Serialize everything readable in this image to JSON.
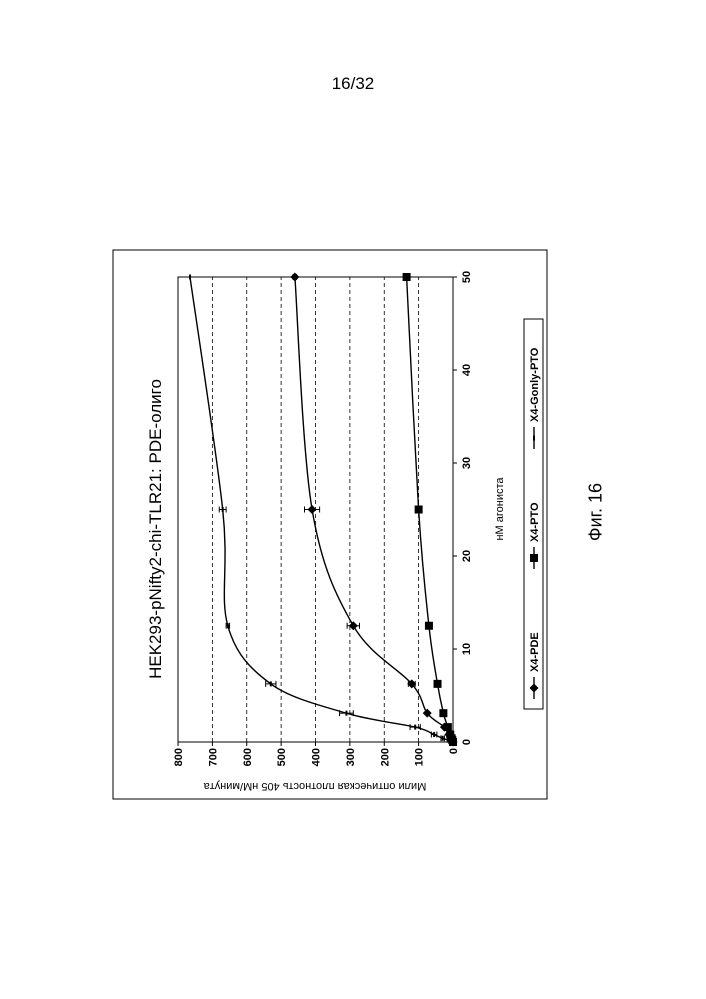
{
  "page": {
    "number": "16/32",
    "figure_label": "Фиг. 16"
  },
  "chart_data": {
    "type": "line",
    "title": "HEK293-pNifty2-chi-TLR21: PDE-олиго",
    "xlabel": "нМ агониста",
    "ylabel": "Мили оптическая плотность 405 нМ/минута",
    "xlim": [
      0,
      50
    ],
    "ylim": [
      0,
      800
    ],
    "xticks": [
      "0",
      "10",
      "20",
      "30",
      "40",
      "50"
    ],
    "yticks": [
      "0",
      "100",
      "200",
      "300",
      "400",
      "500",
      "600",
      "700",
      "800"
    ],
    "grid": "horizontal dashed",
    "legend_position": "bottom",
    "orientation": "rotated 90° counter-clockwise on page",
    "series": [
      {
        "name": "X4-PDE",
        "marker": "diamond",
        "points": [
          [
            0,
            0
          ],
          [
            0.2,
            3
          ],
          [
            0.4,
            6
          ],
          [
            0.8,
            12
          ],
          [
            1.6,
            25
          ],
          [
            3.1,
            75
          ],
          [
            6.25,
            120
          ],
          [
            12.5,
            290
          ],
          [
            25,
            410
          ],
          [
            50,
            460
          ]
        ],
        "errors": [
          0,
          0,
          0,
          0,
          0,
          0,
          10,
          18,
          22,
          5
        ]
      },
      {
        "name": "X4-PTO",
        "marker": "square",
        "points": [
          [
            0,
            0
          ],
          [
            0.2,
            2
          ],
          [
            0.4,
            4
          ],
          [
            0.8,
            8
          ],
          [
            1.6,
            15
          ],
          [
            3.1,
            28
          ],
          [
            6.25,
            45
          ],
          [
            12.5,
            70
          ],
          [
            25,
            100
          ],
          [
            50,
            135
          ]
        ],
        "errors": [
          0,
          0,
          0,
          0,
          0,
          0,
          0,
          0,
          0,
          0
        ]
      },
      {
        "name": "X4-Gonly-PTO",
        "marker": "dash",
        "points": [
          [
            0,
            0
          ],
          [
            0.2,
            15
          ],
          [
            0.4,
            30
          ],
          [
            0.8,
            55
          ],
          [
            1.6,
            110
          ],
          [
            3.1,
            310
          ],
          [
            6.25,
            530
          ],
          [
            12.5,
            655
          ],
          [
            25,
            670
          ],
          [
            50,
            765
          ]
        ],
        "errors": [
          0,
          0,
          5,
          8,
          15,
          20,
          15,
          5,
          10,
          0
        ]
      }
    ]
  }
}
